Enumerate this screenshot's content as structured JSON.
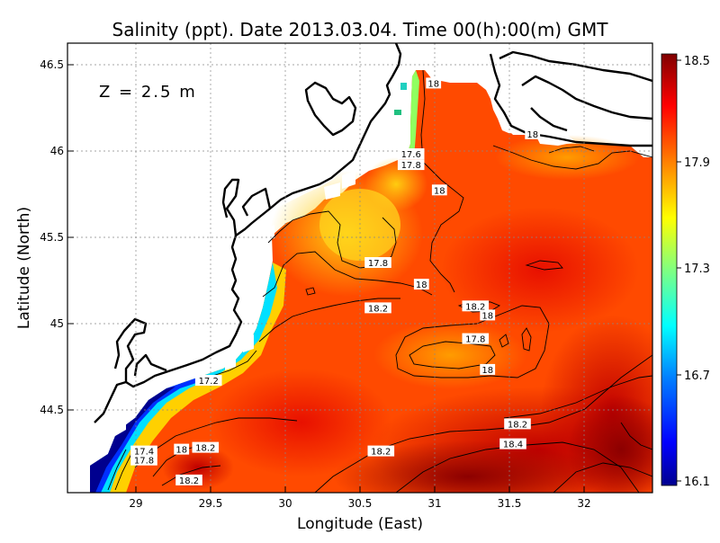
{
  "chart_data": {
    "type": "heatmap",
    "title": "Salinity (ppt). Date 2013.03.04. Time 00(h):00(m) GMT",
    "depth_label": "Z = 2.5 m",
    "xlabel": "Longitude (East)",
    "ylabel": "Latitude (North)",
    "xlim": [
      28.55,
      32.45
    ],
    "ylim": [
      44.05,
      46.53
    ],
    "x_ticks": [
      "29",
      "29.5",
      "30",
      "30.5",
      "31",
      "31.5",
      "32"
    ],
    "y_ticks": [
      "44.5",
      "45",
      "45.5",
      "46",
      "46.5"
    ],
    "grid": true,
    "colorbar": {
      "ticks": [
        "18.5",
        "17.9",
        "17.3",
        "16.7",
        "16.1"
      ],
      "min": 16.1,
      "max": 18.5,
      "colors": [
        "#00008f",
        "#0000ff",
        "#0080ff",
        "#00ffff",
        "#80ff80",
        "#ffff00",
        "#ff8000",
        "#ff0000",
        "#800000"
      ]
    },
    "contour_labels": [
      {
        "text": "18",
        "lon": 30.99,
        "lat": 46.31
      },
      {
        "text": "18",
        "lon": 31.65,
        "lat": 46.03
      },
      {
        "text": "17.6",
        "lon": 30.84,
        "lat": 45.92
      },
      {
        "text": "17.8",
        "lon": 30.84,
        "lat": 45.86
      },
      {
        "text": "18",
        "lon": 31.03,
        "lat": 45.72
      },
      {
        "text": "17.8",
        "lon": 30.62,
        "lat": 45.32
      },
      {
        "text": "18",
        "lon": 30.91,
        "lat": 45.2
      },
      {
        "text": "18.2",
        "lon": 30.62,
        "lat": 45.07
      },
      {
        "text": "18.2",
        "lon": 31.27,
        "lat": 45.08
      },
      {
        "text": "18",
        "lon": 31.35,
        "lat": 45.03
      },
      {
        "text": "17.8",
        "lon": 31.27,
        "lat": 44.9
      },
      {
        "text": "18",
        "lon": 31.35,
        "lat": 44.73
      },
      {
        "text": "17.2",
        "lon": 29.49,
        "lat": 44.67
      },
      {
        "text": "18.2",
        "lon": 31.55,
        "lat": 44.43
      },
      {
        "text": "18.4",
        "lon": 31.52,
        "lat": 44.32
      },
      {
        "text": "17.4",
        "lon": 29.06,
        "lat": 44.28
      },
      {
        "text": "18",
        "lon": 29.31,
        "lat": 44.29
      },
      {
        "text": "18.2",
        "lon": 29.47,
        "lat": 44.3
      },
      {
        "text": "17.8",
        "lon": 29.06,
        "lat": 44.23
      },
      {
        "text": "18.2",
        "lon": 30.64,
        "lat": 44.28
      },
      {
        "text": "18.2",
        "lon": 29.36,
        "lat": 44.12
      }
    ]
  }
}
